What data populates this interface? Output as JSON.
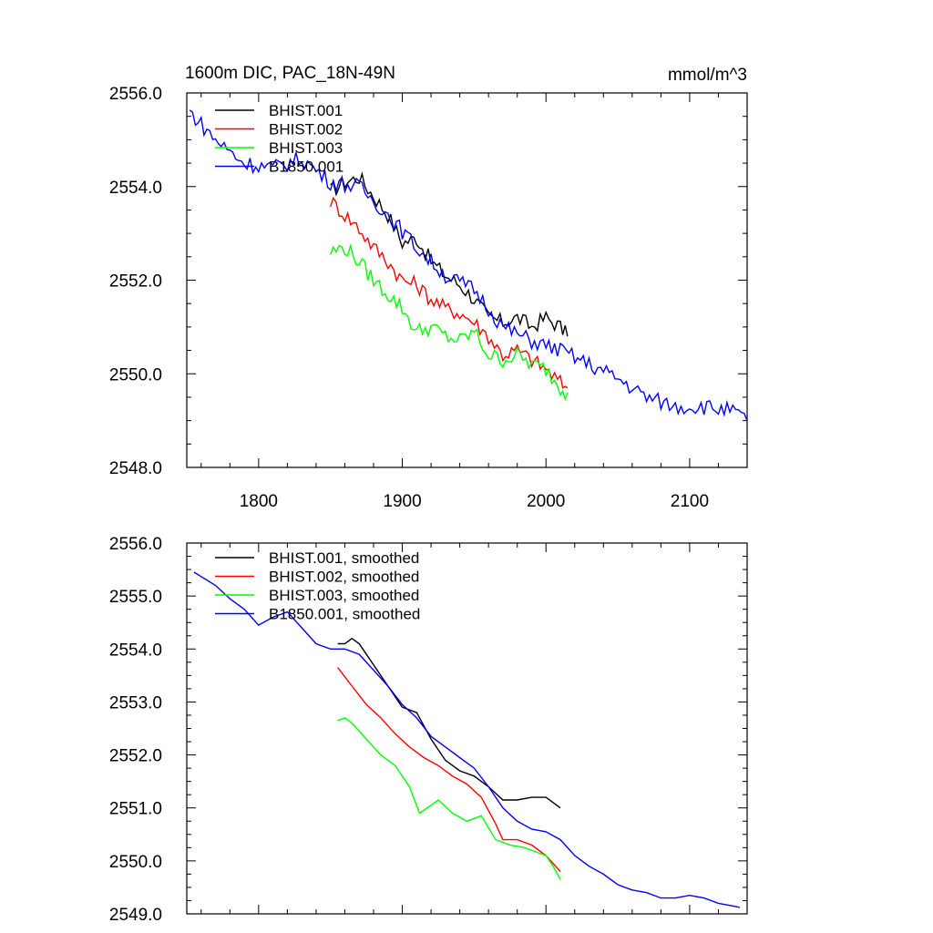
{
  "figure": {
    "title_left": "1600m DIC, PAC_18N-49N",
    "title_right": "mmol/m^3"
  },
  "chart_data": [
    {
      "type": "line",
      "panel": "top",
      "title": "1600m DIC, PAC_18N-49N",
      "units": "mmol/m^3",
      "xlim": [
        1750,
        2140
      ],
      "ylim": [
        2548,
        2556
      ],
      "x_ticks": [
        1800,
        1900,
        2000,
        2100
      ],
      "x_tick_labels": [
        "1800",
        "1900",
        "2000",
        "2100"
      ],
      "y_ticks": [
        2548,
        2550,
        2552,
        2554,
        2556
      ],
      "y_tick_labels": [
        "2548.0",
        "2550.0",
        "2552.0",
        "2554.0",
        "2556.0"
      ],
      "legend_position": "top-left",
      "series": [
        {
          "name": "BHIST.001",
          "color": "#000000",
          "x": [
            1850,
            1860,
            1870,
            1880,
            1890,
            1900,
            1910,
            1920,
            1930,
            1940,
            1950,
            1960,
            1970,
            1980,
            1990,
            2000,
            2010,
            2015
          ],
          "y": [
            2553.9,
            2554.1,
            2554.2,
            2553.8,
            2553.4,
            2552.8,
            2552.9,
            2552.4,
            2552.1,
            2551.9,
            2551.6,
            2551.2,
            2551.1,
            2551.2,
            2551.0,
            2551.2,
            2551.0,
            2550.8
          ]
        },
        {
          "name": "BHIST.002",
          "color": "#ff0000",
          "x": [
            1850,
            1860,
            1870,
            1880,
            1890,
            1900,
            1910,
            1920,
            1930,
            1940,
            1950,
            1960,
            1970,
            1980,
            1990,
            2000,
            2010,
            2015
          ],
          "y": [
            2553.7,
            2553.4,
            2553.1,
            2552.7,
            2552.4,
            2552.0,
            2551.9,
            2551.6,
            2551.4,
            2551.3,
            2551.1,
            2550.8,
            2550.4,
            2550.5,
            2550.3,
            2550.1,
            2549.8,
            2549.7
          ]
        },
        {
          "name": "BHIST.003",
          "color": "#00ff00",
          "x": [
            1850,
            1860,
            1870,
            1880,
            1890,
            1900,
            1910,
            1920,
            1930,
            1940,
            1950,
            1960,
            1970,
            1980,
            1990,
            2000,
            2010,
            2015
          ],
          "y": [
            2552.6,
            2552.7,
            2552.4,
            2552.0,
            2551.7,
            2551.4,
            2550.9,
            2551.0,
            2550.8,
            2550.7,
            2550.9,
            2550.4,
            2550.3,
            2550.4,
            2550.2,
            2550.1,
            2549.7,
            2549.6
          ]
        },
        {
          "name": "B1850.001",
          "color": "#0000ff",
          "x": [
            1752,
            1770,
            1790,
            1810,
            1830,
            1850,
            1870,
            1890,
            1910,
            1930,
            1950,
            1970,
            1990,
            2010,
            2030,
            2050,
            2070,
            2090,
            2110,
            2130,
            2140
          ],
          "y": [
            2555.6,
            2555.0,
            2554.5,
            2554.4,
            2554.6,
            2554.1,
            2554.0,
            2553.4,
            2552.7,
            2552.1,
            2551.8,
            2551.0,
            2550.7,
            2550.5,
            2550.2,
            2549.9,
            2549.5,
            2549.3,
            2549.3,
            2549.2,
            2549.0
          ]
        }
      ]
    },
    {
      "type": "line",
      "panel": "bottom",
      "xlim": [
        1750,
        2140
      ],
      "ylim": [
        2549,
        2556
      ],
      "x_ticks": [
        1800,
        1900,
        2000,
        2100
      ],
      "x_tick_labels": [
        "",
        "",
        "",
        ""
      ],
      "y_ticks": [
        2549,
        2550,
        2551,
        2552,
        2553,
        2554,
        2555,
        2556
      ],
      "y_tick_labels": [
        "2549.0",
        "2550.0",
        "2551.0",
        "2552.0",
        "2553.0",
        "2554.0",
        "2555.0",
        "2556.0"
      ],
      "legend_position": "top-left",
      "series": [
        {
          "name": "BHIST.001, smoothed",
          "color": "#000000",
          "x": [
            1855,
            1860,
            1865,
            1870,
            1880,
            1890,
            1900,
            1910,
            1920,
            1930,
            1940,
            1950,
            1960,
            1970,
            1980,
            1990,
            2000,
            2010
          ],
          "y": [
            2554.1,
            2554.1,
            2554.2,
            2554.1,
            2553.7,
            2553.3,
            2552.9,
            2552.8,
            2552.3,
            2551.9,
            2551.7,
            2551.6,
            2551.4,
            2551.15,
            2551.15,
            2551.2,
            2551.2,
            2551.0
          ]
        },
        {
          "name": "BHIST.002, smoothed",
          "color": "#ff0000",
          "x": [
            1855,
            1865,
            1875,
            1885,
            1895,
            1905,
            1915,
            1925,
            1935,
            1945,
            1955,
            1965,
            1970,
            1980,
            1990,
            2000,
            2010
          ],
          "y": [
            2553.65,
            2553.3,
            2552.95,
            2552.7,
            2552.4,
            2552.15,
            2551.95,
            2551.8,
            2551.6,
            2551.45,
            2551.2,
            2550.7,
            2550.4,
            2550.4,
            2550.3,
            2550.1,
            2549.8
          ]
        },
        {
          "name": "BHIST.003, smoothed",
          "color": "#00ff00",
          "x": [
            1855,
            1860,
            1865,
            1875,
            1885,
            1895,
            1905,
            1912,
            1920,
            1925,
            1935,
            1945,
            1955,
            1965,
            1975,
            1985,
            1995,
            2000,
            2005,
            2010
          ],
          "y": [
            2552.65,
            2552.7,
            2552.6,
            2552.3,
            2552.0,
            2551.8,
            2551.4,
            2550.9,
            2551.05,
            2551.15,
            2550.9,
            2550.75,
            2550.85,
            2550.4,
            2550.3,
            2550.25,
            2550.15,
            2550.1,
            2549.9,
            2549.65
          ]
        },
        {
          "name": "B1850.001, smoothed",
          "color": "#0000ff",
          "x": [
            1755,
            1770,
            1780,
            1790,
            1800,
            1810,
            1820,
            1830,
            1840,
            1850,
            1860,
            1870,
            1880,
            1890,
            1900,
            1910,
            1920,
            1930,
            1940,
            1950,
            1960,
            1970,
            1980,
            1990,
            2000,
            2010,
            2020,
            2030,
            2040,
            2050,
            2060,
            2070,
            2080,
            2090,
            2100,
            2110,
            2120,
            2130,
            2135
          ],
          "y": [
            2555.45,
            2555.2,
            2554.95,
            2554.75,
            2554.45,
            2554.6,
            2554.7,
            2554.4,
            2554.1,
            2554.0,
            2554.0,
            2553.9,
            2553.6,
            2553.3,
            2552.95,
            2552.7,
            2552.35,
            2552.15,
            2551.95,
            2551.75,
            2551.4,
            2551.0,
            2550.75,
            2550.6,
            2550.55,
            2550.4,
            2550.1,
            2549.9,
            2549.75,
            2549.55,
            2549.45,
            2549.4,
            2549.3,
            2549.3,
            2549.35,
            2549.3,
            2549.2,
            2549.15,
            2549.12
          ]
        }
      ]
    }
  ]
}
